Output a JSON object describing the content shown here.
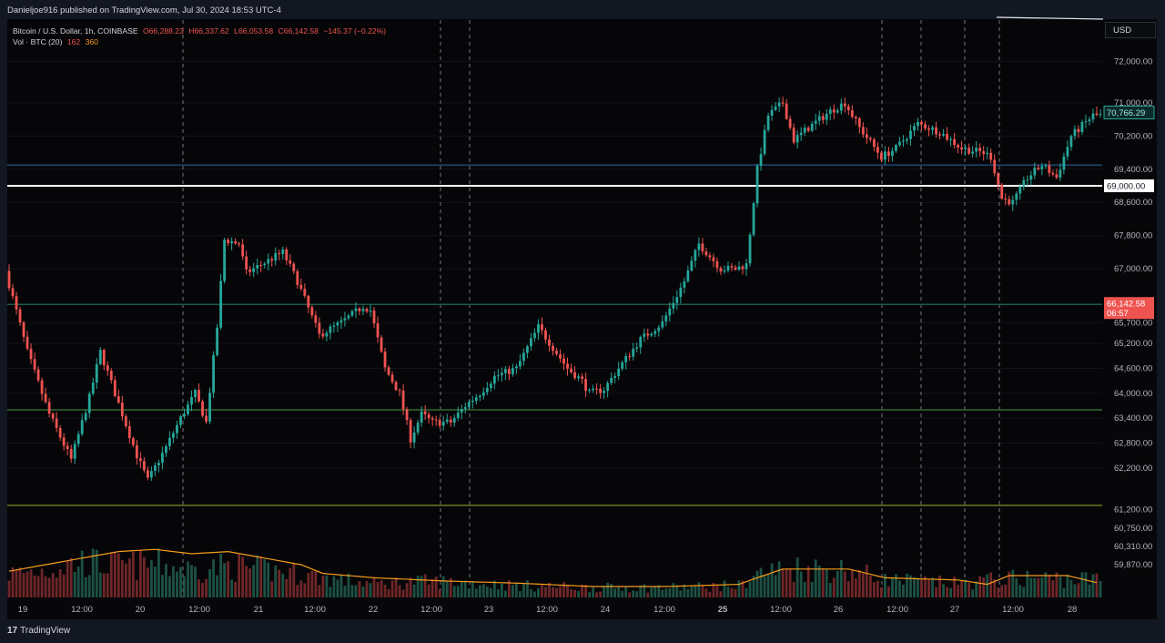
{
  "header": {
    "publish_text": "Danieljoe916 published on TradingView.com, Jul 30, 2024 18:53 UTC-4"
  },
  "legend": {
    "symbol": "Bitcoin / U.S. Dollar, 1h, COINBASE",
    "open": "O66,288.23",
    "high": "H66,337.62",
    "low": "L66,053.58",
    "close": "C66,142.58",
    "change": "−145.37 (−0.22%)",
    "vol_label": "Vol · BTC (20)",
    "vol_value": "162",
    "vol_ma": "360"
  },
  "currency_button": "USD",
  "price_scale": [
    "72,000.00",
    "71,000.00",
    "70,200.00",
    "69,400.00",
    "68,600.00",
    "67,800.00",
    "67,000.00",
    "65,700.00",
    "65,200.00",
    "64,600.00",
    "64,000.00",
    "63,400.00",
    "62,800.00",
    "62,200.00",
    "61,200.00",
    "60,750.00",
    "60,310.00",
    "59,870.00"
  ],
  "price_tags": {
    "last_price": "70,766.29",
    "level_69000": "69,000.00",
    "alert_price": "66,142.58",
    "alert_countdown": "06:57"
  },
  "time_axis": [
    "19",
    "12:00",
    "20",
    "12:00",
    "21",
    "12:00",
    "22",
    "12:00",
    "23",
    "12:00",
    "24",
    "12:00",
    "25",
    "12:00",
    "26",
    "12:00",
    "27",
    "12:00",
    "28"
  ],
  "footer": {
    "brand": "TradingView",
    "logo_mark": "17"
  },
  "colors": {
    "up": "#26a69a",
    "down": "#ef5350",
    "background": "#060608",
    "line_69000": "#ffffff",
    "line_69500": "#1e3a5f",
    "line_66142": "#1e5a4a",
    "line_63600": "#2e6b2a",
    "line_61300": "#6b7a1e",
    "volume_ma": "#f59c1a"
  },
  "chart_data": {
    "type": "candlestick",
    "title": "Bitcoin / U.S. Dollar, 1h, COINBASE",
    "ylim": [
      59870,
      72600
    ],
    "x_ticks": [
      "19",
      "12:00",
      "20",
      "12:00",
      "21",
      "12:00",
      "22",
      "12:00",
      "23",
      "12:00",
      "24",
      "12:00",
      "25",
      "12:00",
      "26",
      "12:00",
      "27",
      "12:00",
      "28"
    ],
    "horizontal_levels": [
      69500,
      69000,
      66142.58,
      63600,
      61300
    ],
    "anchors": [
      [
        0,
        66950
      ],
      [
        6,
        65000
      ],
      [
        12,
        63500
      ],
      [
        18,
        62400
      ],
      [
        23,
        63900
      ],
      [
        26,
        65000
      ],
      [
        30,
        64000
      ],
      [
        36,
        62500
      ],
      [
        39,
        61900
      ],
      [
        44,
        62700
      ],
      [
        48,
        63400
      ],
      [
        52,
        64000
      ],
      [
        55,
        63300
      ],
      [
        58,
        65600
      ],
      [
        60,
        67700
      ],
      [
        64,
        67600
      ],
      [
        66,
        66900
      ],
      [
        70,
        67100
      ],
      [
        76,
        67400
      ],
      [
        80,
        66700
      ],
      [
        86,
        65400
      ],
      [
        92,
        65700
      ],
      [
        98,
        66100
      ],
      [
        100,
        66000
      ],
      [
        104,
        64600
      ],
      [
        108,
        64000
      ],
      [
        111,
        62900
      ],
      [
        114,
        63500
      ],
      [
        117,
        63300
      ],
      [
        122,
        63300
      ],
      [
        126,
        63700
      ],
      [
        130,
        64000
      ],
      [
        134,
        64400
      ],
      [
        140,
        64600
      ],
      [
        146,
        65600
      ],
      [
        150,
        65100
      ],
      [
        154,
        64600
      ],
      [
        158,
        64300
      ],
      [
        160,
        64000
      ],
      [
        164,
        64100
      ],
      [
        168,
        64600
      ],
      [
        174,
        65300
      ],
      [
        180,
        65700
      ],
      [
        186,
        66700
      ],
      [
        190,
        67600
      ],
      [
        196,
        67000
      ],
      [
        200,
        67000
      ],
      [
        203,
        67100
      ],
      [
        206,
        69400
      ],
      [
        209,
        70700
      ],
      [
        213,
        71000
      ],
      [
        216,
        70100
      ],
      [
        220,
        70400
      ],
      [
        226,
        70800
      ],
      [
        230,
        71000
      ],
      [
        234,
        70400
      ],
      [
        240,
        69700
      ],
      [
        244,
        69900
      ],
      [
        250,
        70500
      ],
      [
        256,
        70300
      ],
      [
        262,
        69900
      ],
      [
        268,
        69800
      ],
      [
        270,
        69700
      ],
      [
        273,
        68700
      ],
      [
        276,
        68600
      ],
      [
        280,
        69200
      ],
      [
        284,
        69500
      ],
      [
        288,
        69200
      ],
      [
        292,
        70200
      ],
      [
        298,
        70700
      ]
    ],
    "volume_profile": [
      [
        0,
        0.24
      ],
      [
        10,
        0.28
      ],
      [
        20,
        0.36
      ],
      [
        30,
        0.32
      ],
      [
        40,
        0.34
      ],
      [
        50,
        0.28
      ],
      [
        60,
        0.32
      ],
      [
        70,
        0.28
      ],
      [
        80,
        0.24
      ],
      [
        90,
        0.18
      ],
      [
        100,
        0.14
      ],
      [
        110,
        0.16
      ],
      [
        120,
        0.16
      ],
      [
        140,
        0.12
      ],
      [
        160,
        0.1
      ],
      [
        180,
        0.1
      ],
      [
        200,
        0.12
      ],
      [
        205,
        0.24
      ],
      [
        215,
        0.3
      ],
      [
        230,
        0.28
      ],
      [
        240,
        0.18
      ],
      [
        250,
        0.16
      ],
      [
        260,
        0.14
      ],
      [
        270,
        0.18
      ],
      [
        280,
        0.2
      ],
      [
        300,
        0.18
      ]
    ],
    "volume_ma_profile": [
      [
        0,
        0.24
      ],
      [
        10,
        0.3
      ],
      [
        20,
        0.36
      ],
      [
        30,
        0.42
      ],
      [
        40,
        0.44
      ],
      [
        50,
        0.4
      ],
      [
        60,
        0.42
      ],
      [
        70,
        0.36
      ],
      [
        80,
        0.3
      ],
      [
        86,
        0.22
      ],
      [
        100,
        0.18
      ],
      [
        120,
        0.15
      ],
      [
        140,
        0.13
      ],
      [
        160,
        0.1
      ],
      [
        180,
        0.1
      ],
      [
        200,
        0.12
      ],
      [
        205,
        0.18
      ],
      [
        212,
        0.26
      ],
      [
        230,
        0.26
      ],
      [
        240,
        0.18
      ],
      [
        260,
        0.16
      ],
      [
        268,
        0.12
      ],
      [
        274,
        0.2
      ],
      [
        290,
        0.2
      ],
      [
        300,
        0.12
      ]
    ]
  }
}
